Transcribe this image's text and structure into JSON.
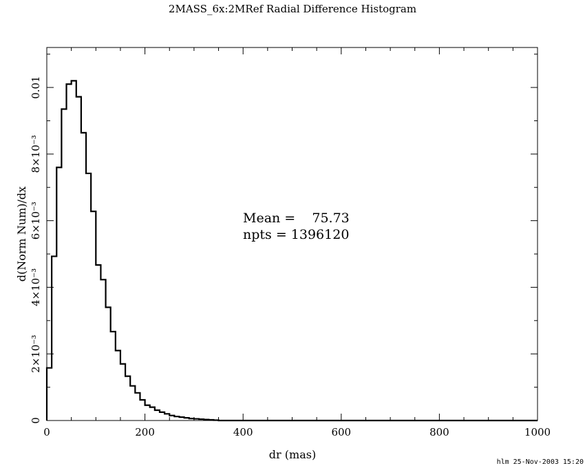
{
  "chart_data": {
    "type": "histogram",
    "title": "2MASS_6x:2MRef Radial Difference Histogram",
    "xlabel": "dr (mas)",
    "ylabel": "d(Norm Num)/dx",
    "xlim": [
      0,
      1000
    ],
    "ylim": [
      0,
      0.0112
    ],
    "bin_width": 10,
    "x_ticks": [
      {
        "value": 0,
        "label": "0"
      },
      {
        "value": 200,
        "label": "200"
      },
      {
        "value": 400,
        "label": "400"
      },
      {
        "value": 600,
        "label": "600"
      },
      {
        "value": 800,
        "label": "800"
      },
      {
        "value": 1000,
        "label": "1000"
      }
    ],
    "y_ticks": [
      {
        "value": 0,
        "label": "0"
      },
      {
        "value": 0.002,
        "label": "2×10⁻³"
      },
      {
        "value": 0.004,
        "label": "4×10⁻³"
      },
      {
        "value": 0.006,
        "label": "6×10⁻³"
      },
      {
        "value": 0.008,
        "label": "8×10⁻³"
      },
      {
        "value": 0.01,
        "label": "0.01"
      }
    ],
    "bins": [
      {
        "x": 0,
        "y": 0.00158
      },
      {
        "x": 10,
        "y": 0.00493
      },
      {
        "x": 20,
        "y": 0.0076
      },
      {
        "x": 30,
        "y": 0.00935
      },
      {
        "x": 40,
        "y": 0.0101
      },
      {
        "x": 50,
        "y": 0.0102
      },
      {
        "x": 60,
        "y": 0.00972
      },
      {
        "x": 70,
        "y": 0.00864
      },
      {
        "x": 80,
        "y": 0.00742
      },
      {
        "x": 90,
        "y": 0.00628
      },
      {
        "x": 100,
        "y": 0.00467
      },
      {
        "x": 110,
        "y": 0.00423
      },
      {
        "x": 120,
        "y": 0.0034
      },
      {
        "x": 130,
        "y": 0.00267
      },
      {
        "x": 140,
        "y": 0.0021
      },
      {
        "x": 150,
        "y": 0.0017
      },
      {
        "x": 160,
        "y": 0.00133
      },
      {
        "x": 170,
        "y": 0.00104
      },
      {
        "x": 180,
        "y": 0.00083
      },
      {
        "x": 190,
        "y": 0.00062
      },
      {
        "x": 200,
        "y": 0.00046
      },
      {
        "x": 210,
        "y": 0.0004
      },
      {
        "x": 220,
        "y": 0.00031
      },
      {
        "x": 230,
        "y": 0.00025
      },
      {
        "x": 240,
        "y": 0.0002
      },
      {
        "x": 250,
        "y": 0.00015
      },
      {
        "x": 260,
        "y": 0.00012
      },
      {
        "x": 270,
        "y": 0.0001
      },
      {
        "x": 280,
        "y": 8e-05
      },
      {
        "x": 290,
        "y": 6e-05
      },
      {
        "x": 300,
        "y": 5e-05
      },
      {
        "x": 310,
        "y": 4e-05
      },
      {
        "x": 320,
        "y": 3e-05
      },
      {
        "x": 330,
        "y": 2e-05
      },
      {
        "x": 340,
        "y": 1e-05
      },
      {
        "x": 350,
        "y": 0
      },
      {
        "x": 1000,
        "y": 0
      }
    ],
    "annotations": {
      "mean_line": "Mean =    75.73",
      "npts_line": "npts = 1396120"
    },
    "grid": false
  },
  "footer": {
    "stamp": "hlm 25-Nov-2003 15:20"
  }
}
